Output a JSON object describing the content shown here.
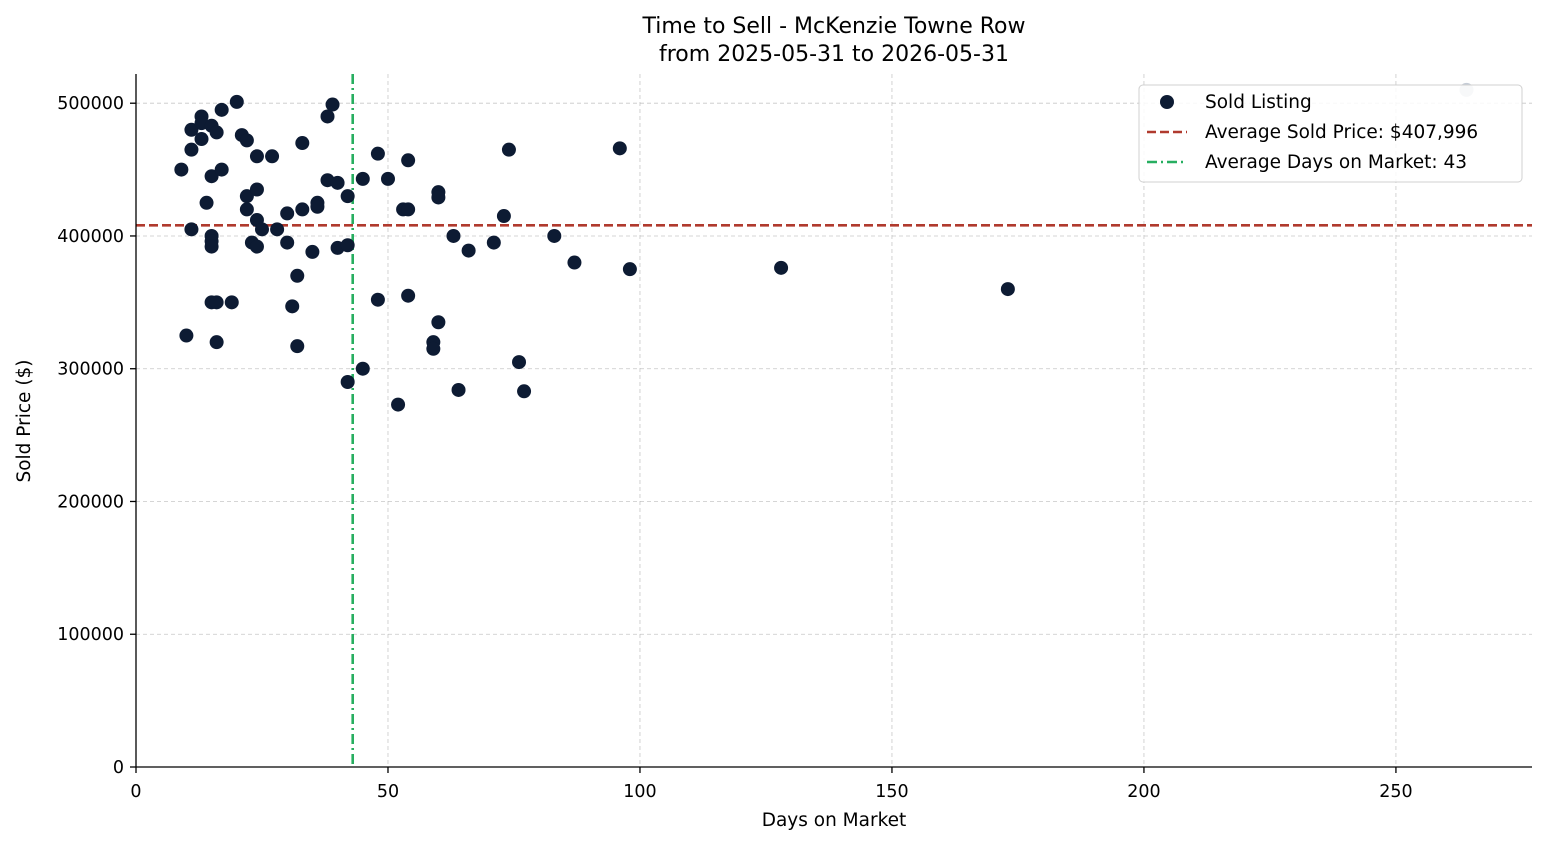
{
  "chart_data": {
    "type": "scatter",
    "title": "Time to Sell - McKenzie Towne Row",
    "subtitle": "from 2025-05-31 to 2026-05-31",
    "xlabel": "Days on Market",
    "ylabel": "Sold Price ($)",
    "xlim": [
      0,
      277
    ],
    "ylim": [
      0,
      522000
    ],
    "x_ticks": [
      0,
      50,
      100,
      150,
      200,
      250
    ],
    "y_ticks": [
      0,
      100000,
      200000,
      300000,
      400000,
      500000
    ],
    "grid": true,
    "legend_position": "top-right",
    "colors": {
      "points": "#0d1b33",
      "highlight_point": "#c5ccd6",
      "avg_price_line": "#b03a2e",
      "avg_days_line": "#27ae60"
    },
    "series": [
      {
        "name": "Sold Listing",
        "points": [
          [
            9,
            450000
          ],
          [
            10,
            325000
          ],
          [
            11,
            405000
          ],
          [
            11,
            465000
          ],
          [
            11,
            480000
          ],
          [
            13,
            490000
          ],
          [
            13,
            485000
          ],
          [
            13,
            473000
          ],
          [
            14,
            425000
          ],
          [
            15,
            483000
          ],
          [
            15,
            445000
          ],
          [
            15,
            400000
          ],
          [
            15,
            396000
          ],
          [
            15,
            392000
          ],
          [
            15,
            350000
          ],
          [
            16,
            478000
          ],
          [
            16,
            350000
          ],
          [
            16,
            320000
          ],
          [
            17,
            495000
          ],
          [
            17,
            450000
          ],
          [
            19,
            350000
          ],
          [
            20,
            501000
          ],
          [
            21,
            476000
          ],
          [
            22,
            472000
          ],
          [
            22,
            430000
          ],
          [
            22,
            420000
          ],
          [
            23,
            395000
          ],
          [
            24,
            460000
          ],
          [
            24,
            435000
          ],
          [
            24,
            412000
          ],
          [
            24,
            392000
          ],
          [
            25,
            405000
          ],
          [
            27,
            460000
          ],
          [
            28,
            405000
          ],
          [
            30,
            417000
          ],
          [
            30,
            395000
          ],
          [
            31,
            347000
          ],
          [
            32,
            370000
          ],
          [
            32,
            317000
          ],
          [
            33,
            470000
          ],
          [
            33,
            420000
          ],
          [
            35,
            388000
          ],
          [
            36,
            425000
          ],
          [
            36,
            422000
          ],
          [
            38,
            490000
          ],
          [
            38,
            442000
          ],
          [
            39,
            499000
          ],
          [
            40,
            440000
          ],
          [
            40,
            391000
          ],
          [
            42,
            430000
          ],
          [
            42,
            393000
          ],
          [
            42,
            290000
          ],
          [
            45,
            443000
          ],
          [
            45,
            300000
          ],
          [
            48,
            462000
          ],
          [
            48,
            352000
          ],
          [
            50,
            443000
          ],
          [
            52,
            273000
          ],
          [
            53,
            420000
          ],
          [
            54,
            420000
          ],
          [
            54,
            457000
          ],
          [
            54,
            355000
          ],
          [
            59,
            320000
          ],
          [
            59,
            315000
          ],
          [
            60,
            433000
          ],
          [
            60,
            429000
          ],
          [
            60,
            335000
          ],
          [
            63,
            400000
          ],
          [
            64,
            284000
          ],
          [
            66,
            389000
          ],
          [
            71,
            395000
          ],
          [
            73,
            415000
          ],
          [
            74,
            465000
          ],
          [
            76,
            305000
          ],
          [
            77,
            283000
          ],
          [
            83,
            400000
          ],
          [
            87,
            380000
          ],
          [
            96,
            466000
          ],
          [
            98,
            375000
          ],
          [
            128,
            376000
          ],
          [
            173,
            360000
          ]
        ],
        "highlight_points": [
          [
            264,
            510000
          ]
        ]
      }
    ],
    "reference_lines": [
      {
        "name": "Average Sold Price: $407,996",
        "orientation": "horizontal",
        "value": 407996,
        "style": "dashed"
      },
      {
        "name": "Average Days on Market: 43",
        "orientation": "vertical",
        "value": 43,
        "style": "dash-dot"
      }
    ]
  }
}
